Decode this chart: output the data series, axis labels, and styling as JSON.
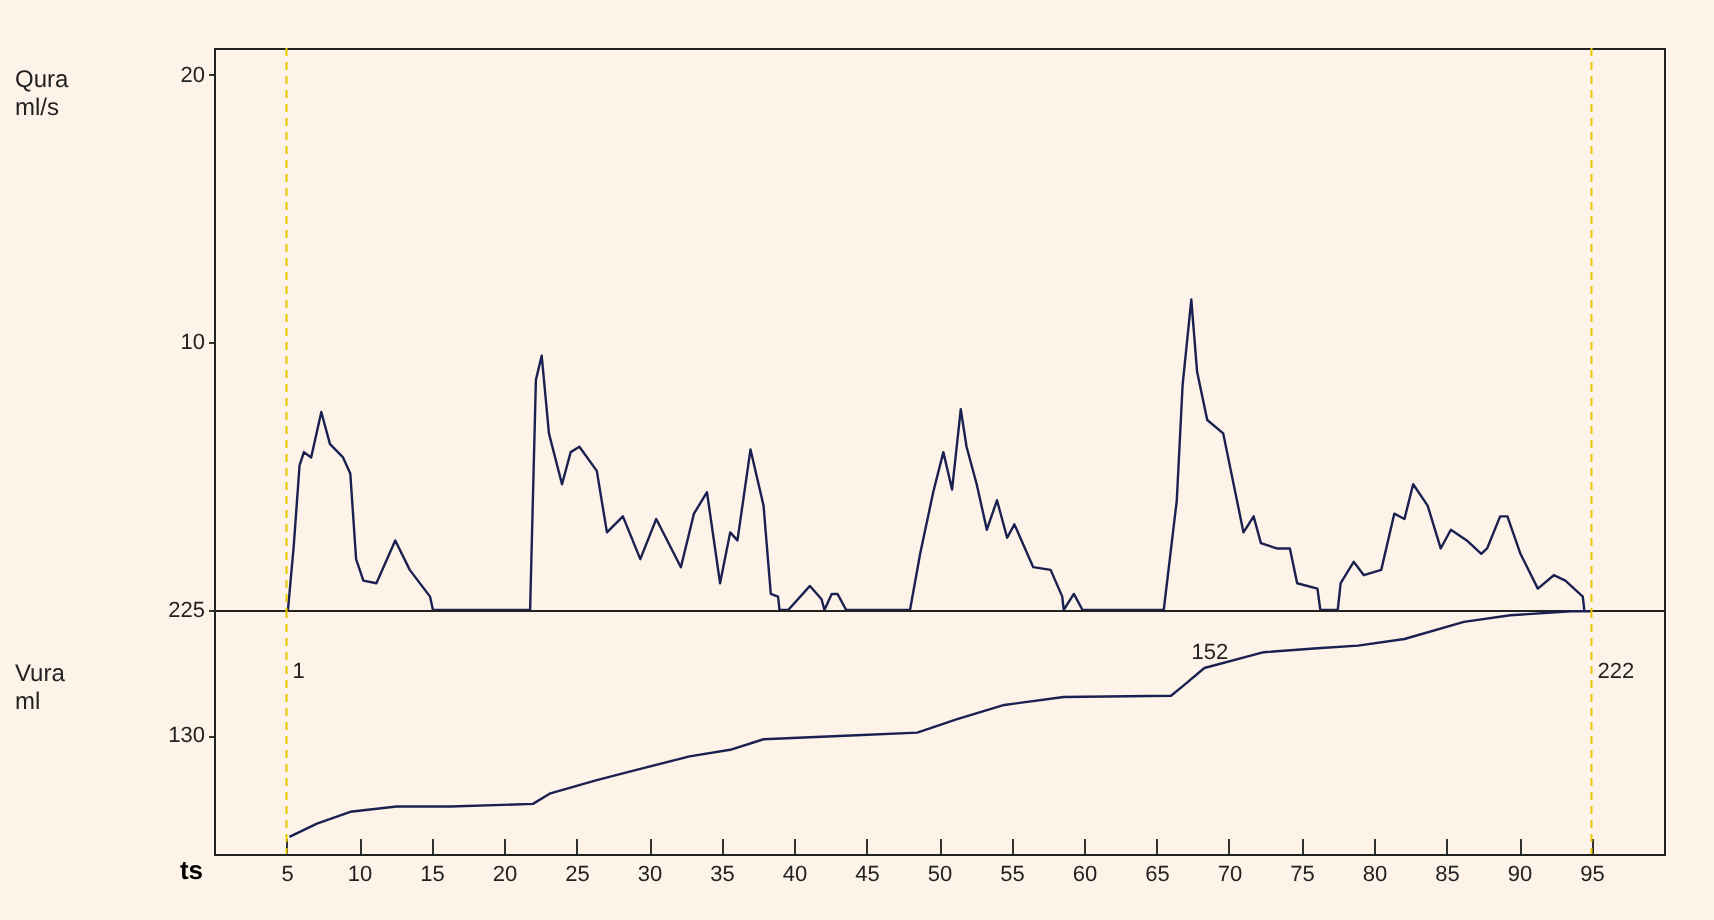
{
  "chart_data": [
    {
      "type": "line",
      "ylabel": "Qura ml/s",
      "color": "#1a2050",
      "xlim": [
        0,
        100
      ],
      "ylim": [
        0,
        21
      ],
      "yticks": [
        10,
        20
      ],
      "tick_labels": "y",
      "x": [
        5.1,
        5.5,
        5.9,
        6.2,
        6.7,
        7.4,
        8.0,
        8.9,
        9.4,
        9.8,
        10.3,
        11.2,
        12.5,
        13.5,
        14.9,
        15.1,
        21.8,
        22.2,
        22.6,
        23.1,
        24.0,
        24.6,
        25.2,
        26.4,
        27.1,
        28.2,
        29.4,
        30.5,
        32.2,
        33.1,
        34.0,
        34.9,
        35.6,
        36.1,
        37.0,
        37.9,
        38.4,
        38.9,
        39.0,
        39.6,
        41.1,
        41.9,
        42.1,
        42.6,
        43.0,
        43.6,
        48.0,
        48.7,
        49.6,
        50.3,
        50.9,
        51.5,
        51.9,
        52.6,
        53.3,
        54.0,
        54.7,
        55.2,
        56.5,
        57.7,
        58.5,
        58.6,
        59.3,
        59.9,
        65.5,
        66.4,
        66.8,
        67.4,
        67.8,
        68.5,
        69.6,
        71.0,
        71.7,
        72.2,
        73.3,
        74.2,
        74.7,
        76.1,
        76.3,
        77.5,
        77.7,
        78.6,
        79.3,
        80.5,
        81.4,
        82.1,
        82.7,
        83.7,
        84.6,
        85.3,
        86.4,
        87.4,
        87.8,
        88.7,
        89.2,
        90.1,
        91.3,
        92.4,
        93.2,
        94.4,
        94.5
      ],
      "values": [
        0,
        2.4,
        5.4,
        5.9,
        5.7,
        7.4,
        6.2,
        5.7,
        5.1,
        1.9,
        1.1,
        1.0,
        2.6,
        1.5,
        0.5,
        0,
        0,
        8.6,
        9.5,
        6.6,
        4.7,
        5.9,
        6.1,
        5.2,
        2.9,
        3.5,
        1.9,
        3.4,
        1.6,
        3.6,
        4.4,
        1.0,
        2.9,
        2.6,
        6.0,
        3.9,
        0.6,
        0.5,
        0,
        0,
        0.9,
        0.4,
        0,
        0.6,
        0.6,
        0,
        0,
        2.1,
        4.4,
        5.9,
        4.5,
        7.5,
        6.1,
        4.7,
        3.0,
        4.1,
        2.7,
        3.2,
        1.6,
        1.5,
        0.5,
        0,
        0.6,
        0,
        0,
        4.1,
        8.4,
        11.6,
        8.9,
        7.1,
        6.6,
        2.9,
        3.5,
        2.5,
        2.3,
        2.3,
        1.0,
        0.8,
        0,
        0,
        1.0,
        1.8,
        1.3,
        1.5,
        3.6,
        3.4,
        4.7,
        3.9,
        2.3,
        3.0,
        2.6,
        2.1,
        2.3,
        3.5,
        3.5,
        2.1,
        0.8,
        1.3,
        1.1,
        0.5,
        0
      ],
      "ref_lines": [
        {
          "axis": "x",
          "value": 5,
          "color": "#e8c800",
          "line_style": "dashed"
        },
        {
          "axis": "x",
          "value": 95,
          "color": "#e8c800",
          "line_style": "dashed"
        }
      ]
    },
    {
      "type": "line",
      "ylabel": "Vura ml",
      "xlabel": "ts",
      "color": "#1a2050",
      "xlim": [
        0,
        100
      ],
      "ylim": [
        40,
        225
      ],
      "yticks": [
        130,
        225
      ],
      "xticks": [
        5,
        10,
        15,
        20,
        25,
        30,
        35,
        40,
        45,
        50,
        55,
        60,
        65,
        70,
        75,
        80,
        85,
        90,
        95
      ],
      "x": [
        5.2,
        7.1,
        9.4,
        12.6,
        16.3,
        22.0,
        23.2,
        26.4,
        29.2,
        32.8,
        35.6,
        37.9,
        44.3,
        48.5,
        51.2,
        54.5,
        58.6,
        66.0,
        66.9,
        68.3,
        72.4,
        76.1,
        78.9,
        82.1,
        86.2,
        89.4,
        93.6,
        95.0
      ],
      "values": [
        53,
        63,
        72,
        76,
        76,
        78,
        86,
        96,
        104,
        114,
        119,
        127,
        130,
        132,
        142,
        153,
        159,
        160,
        168,
        181,
        193,
        196,
        198,
        203,
        216,
        221,
        224,
        224
      ],
      "ref_lines": [
        {
          "axis": "x",
          "value": 5,
          "color": "#e8c800",
          "line_style": "dashed"
        },
        {
          "axis": "x",
          "value": 95,
          "color": "#e8c800",
          "line_style": "dashed"
        }
      ],
      "annotations": [
        {
          "text": "1",
          "x": 5
        },
        {
          "text": "152",
          "x": 67,
          "y": 168
        },
        {
          "text": "222",
          "x": 95
        }
      ]
    }
  ]
}
